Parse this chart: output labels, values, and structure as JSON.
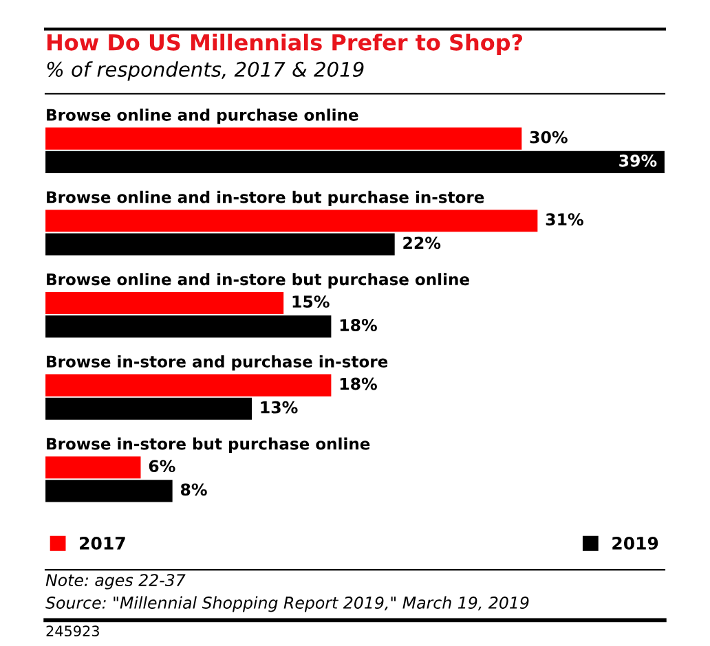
{
  "chart_data": {
    "type": "bar",
    "orientation": "horizontal",
    "title": "How Do US Millennials Prefer to Shop?",
    "subtitle": "% of respondents, 2017 & 2019",
    "categories": [
      "Browse online and purchase online",
      "Browse online and in-store but purchase in-store",
      "Browse online and in-store but purchase online",
      "Browse in-store and purchase in-store",
      "Browse in-store but purchase online"
    ],
    "series": [
      {
        "name": "2017",
        "color": "#ff0000",
        "values": [
          30,
          31,
          15,
          18,
          6
        ],
        "value_labels": [
          "30%",
          "31%",
          "15%",
          "18%",
          "6%"
        ]
      },
      {
        "name": "2019",
        "color": "#000000",
        "values": [
          39,
          22,
          18,
          13,
          8
        ],
        "value_labels": [
          "39%",
          "22%",
          "18%",
          "13%",
          "8%"
        ]
      }
    ],
    "legend": "bottom",
    "annotations": [
      "Note: ages 22-37",
      "Source: \"Millennial Shopping Report 2019,\" March 19, 2019",
      "245923"
    ]
  }
}
